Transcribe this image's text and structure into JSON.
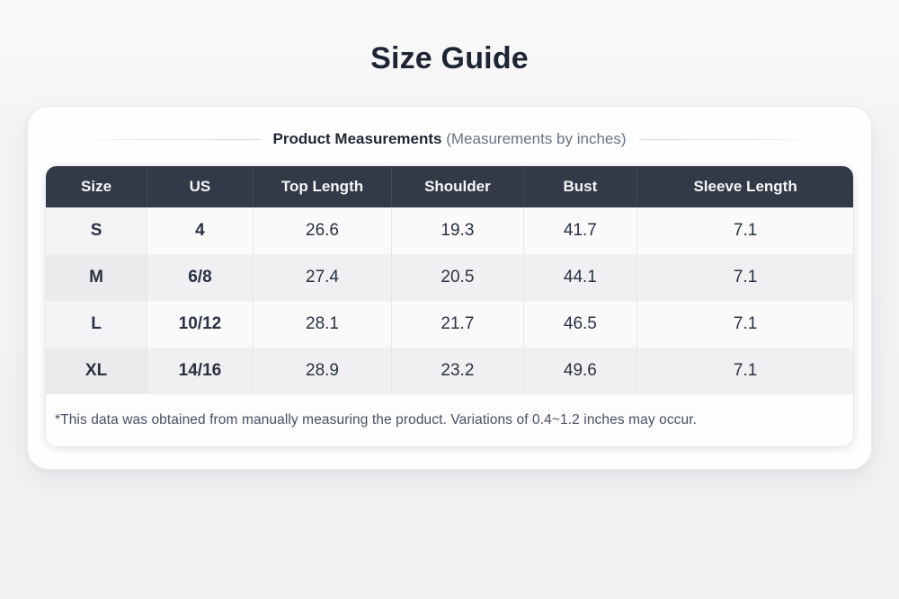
{
  "page": {
    "title": "Size Guide"
  },
  "card": {
    "heading": {
      "bold": "Product Measurements",
      "note": "(Measurements by inches)"
    },
    "table": {
      "columns": [
        "Size",
        "US",
        "Top Length",
        "Shoulder",
        "Bust",
        "Sleeve Length"
      ],
      "rows": [
        {
          "size": "S",
          "us": "4",
          "top_length": "26.6",
          "shoulder": "19.3",
          "bust": "41.7",
          "sleeve_length": "7.1"
        },
        {
          "size": "M",
          "us": "6/8",
          "top_length": "27.4",
          "shoulder": "20.5",
          "bust": "44.1",
          "sleeve_length": "7.1"
        },
        {
          "size": "L",
          "us": "10/12",
          "top_length": "28.1",
          "shoulder": "21.7",
          "bust": "46.5",
          "sleeve_length": "7.1"
        },
        {
          "size": "XL",
          "us": "14/16",
          "top_length": "28.9",
          "shoulder": "23.2",
          "bust": "49.6",
          "sleeve_length": "7.1"
        }
      ]
    },
    "footnote": "*This data was obtained from manually measuring the product. Variations of 0.4~1.2 inches may occur."
  },
  "colors": {
    "page_background": "#f3f2f4",
    "card_background": "#fefefe",
    "table_header_background": "#323947",
    "table_header_text": "#f5f6f8",
    "row_light": "#fafafb",
    "row_gray": "#f0f0f2",
    "body_text": "#2a3140",
    "title_text": "#1d2433",
    "footnote_text": "#475061"
  }
}
